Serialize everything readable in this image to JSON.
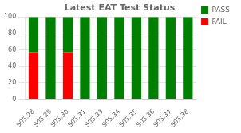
{
  "chart_data": {
    "type": "bar",
    "title": "Latest EAT Test Status",
    "categories": [
      "S05.28",
      "S05.29",
      "S05.30",
      "S05.31",
      "S05.33",
      "S05.34",
      "S05.35",
      "S05.36",
      "S05.37",
      "S05.38"
    ],
    "series": [
      {
        "name": "FAIL",
        "color": "#ff0000",
        "values": [
          57,
          0,
          57,
          0,
          0,
          0,
          0,
          0,
          0,
          0
        ]
      },
      {
        "name": "PASS",
        "color": "#008000",
        "values": [
          43,
          100,
          43,
          100,
          100,
          100,
          100,
          100,
          100,
          100
        ]
      }
    ],
    "stacked": true,
    "ylim": [
      0,
      100
    ],
    "yticks": [
      0,
      20,
      40,
      60,
      80,
      100
    ],
    "grid": true,
    "legend": "right"
  }
}
